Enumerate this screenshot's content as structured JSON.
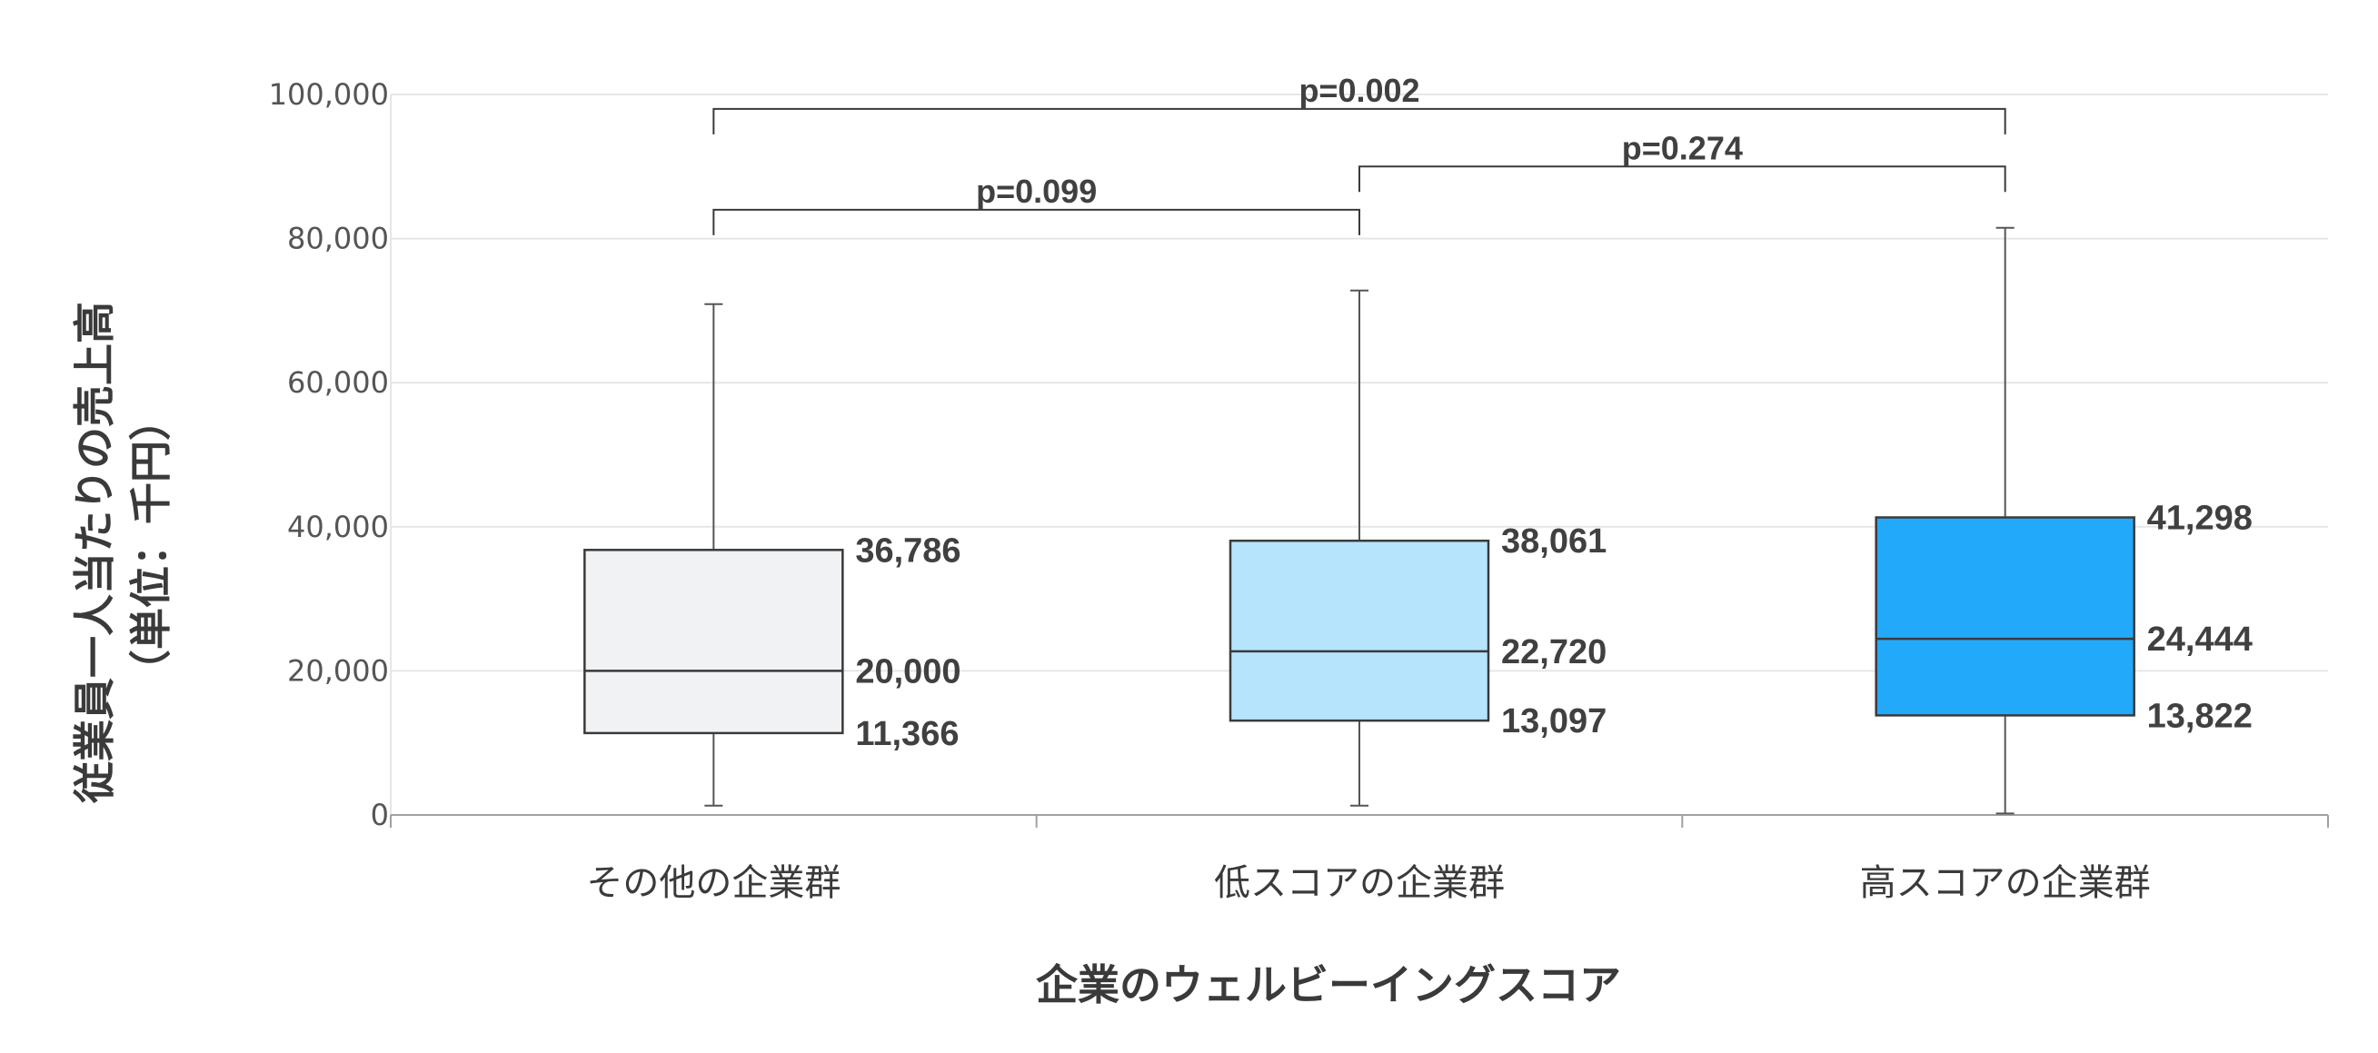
{
  "chart_data": {
    "type": "boxplot",
    "title": "",
    "xlabel": "企業のウェルビーイングスコア",
    "ylabel_line1": "従業員一人当たりの売上高",
    "ylabel_line2": "（単位：千円）",
    "ylim": [
      0,
      100000
    ],
    "yticks": [
      0,
      20000,
      40000,
      60000,
      80000,
      100000
    ],
    "ytick_labels": [
      "0",
      "20,000",
      "40,000",
      "60,000",
      "80,000",
      "100,000"
    ],
    "grid": true,
    "categories": [
      "その他の企業群",
      "低スコアの企業群",
      "高スコアの企業群"
    ],
    "groups": [
      {
        "name": "その他の企業群",
        "whisker_low": 1300,
        "q1": 11366,
        "median": 20000,
        "q3": 36786,
        "whisker_high": 70900,
        "q1_label": "11,366",
        "median_label": "20,000",
        "q3_label": "36,786",
        "color": "#F1F2F4"
      },
      {
        "name": "低スコアの企業群",
        "whisker_low": 1300,
        "q1": 13097,
        "median": 22720,
        "q3": 38061,
        "whisker_high": 72800,
        "q1_label": "13,097",
        "median_label": "22,720",
        "q3_label": "38,061",
        "color": "#B6E4FC"
      },
      {
        "name": "高スコアの企業群",
        "whisker_low": 200,
        "q1": 13822,
        "median": 24444,
        "q3": 41298,
        "whisker_high": 81500,
        "q1_label": "13,822",
        "median_label": "24,444",
        "q3_label": "41,298",
        "color": "#23A9F9"
      }
    ],
    "comparisons": [
      {
        "from": 0,
        "to": 2,
        "level": 98000,
        "label": "p=0.002"
      },
      {
        "from": 1,
        "to": 2,
        "level": 90000,
        "label": "p=0.274"
      },
      {
        "from": 0,
        "to": 1,
        "level": 84000,
        "label": "p=0.099"
      }
    ],
    "colors": {
      "grid": "#E6E6E6",
      "axis": "#A0A0A0",
      "box_stroke": "#3A3A3A",
      "whisker": "#555555"
    }
  }
}
